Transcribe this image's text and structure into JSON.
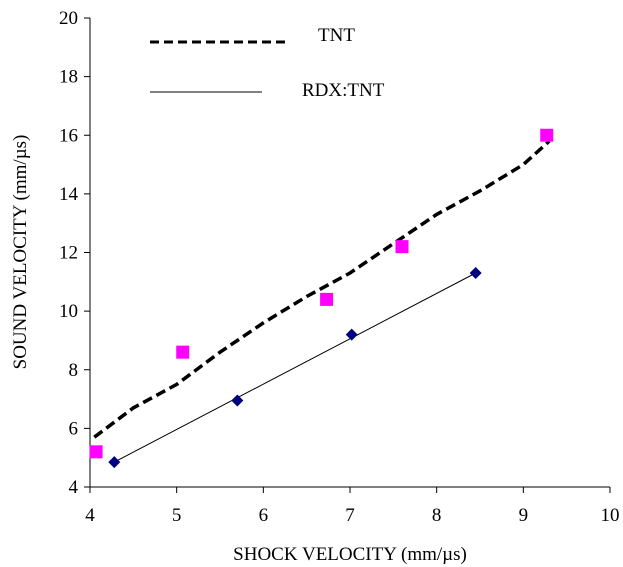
{
  "chart_data": {
    "type": "scatter",
    "xlabel": "SHOCK  VELOCITY  (mm/µs)",
    "ylabel": "SOUND  VELOCITY  (mm/µs)",
    "xlim": [
      4,
      10
    ],
    "ylim": [
      4,
      20
    ],
    "x_ticks": [
      4,
      5,
      6,
      7,
      8,
      9,
      10
    ],
    "y_ticks": [
      4,
      6,
      8,
      10,
      12,
      14,
      16,
      18,
      20
    ],
    "grid": false,
    "legend_position": "top-left",
    "series": [
      {
        "name": "TNT",
        "kind": "line",
        "style": "dashed",
        "color": "#000000",
        "x": [
          4.05,
          4.5,
          5.0,
          5.5,
          6.0,
          6.5,
          7.0,
          7.5,
          8.0,
          8.5,
          9.0,
          9.3
        ],
        "y": [
          5.7,
          6.7,
          7.5,
          8.6,
          9.6,
          10.5,
          11.3,
          12.3,
          13.3,
          14.1,
          15.0,
          15.8
        ]
      },
      {
        "name": "RDX:TNT",
        "kind": "line",
        "style": "solid",
        "color": "#000000",
        "x": [
          4.28,
          8.45
        ],
        "y": [
          4.85,
          11.3
        ]
      },
      {
        "kind": "markers",
        "marker": "square",
        "color": "#ff00ff",
        "x": [
          4.07,
          5.07,
          6.73,
          7.6,
          9.27
        ],
        "y": [
          5.2,
          8.6,
          10.4,
          12.2,
          16.0
        ]
      },
      {
        "kind": "markers",
        "marker": "diamond",
        "color": "#000080",
        "x": [
          4.28,
          5.7,
          7.02,
          8.45
        ],
        "y": [
          4.85,
          6.95,
          9.2,
          11.3
        ]
      }
    ]
  }
}
